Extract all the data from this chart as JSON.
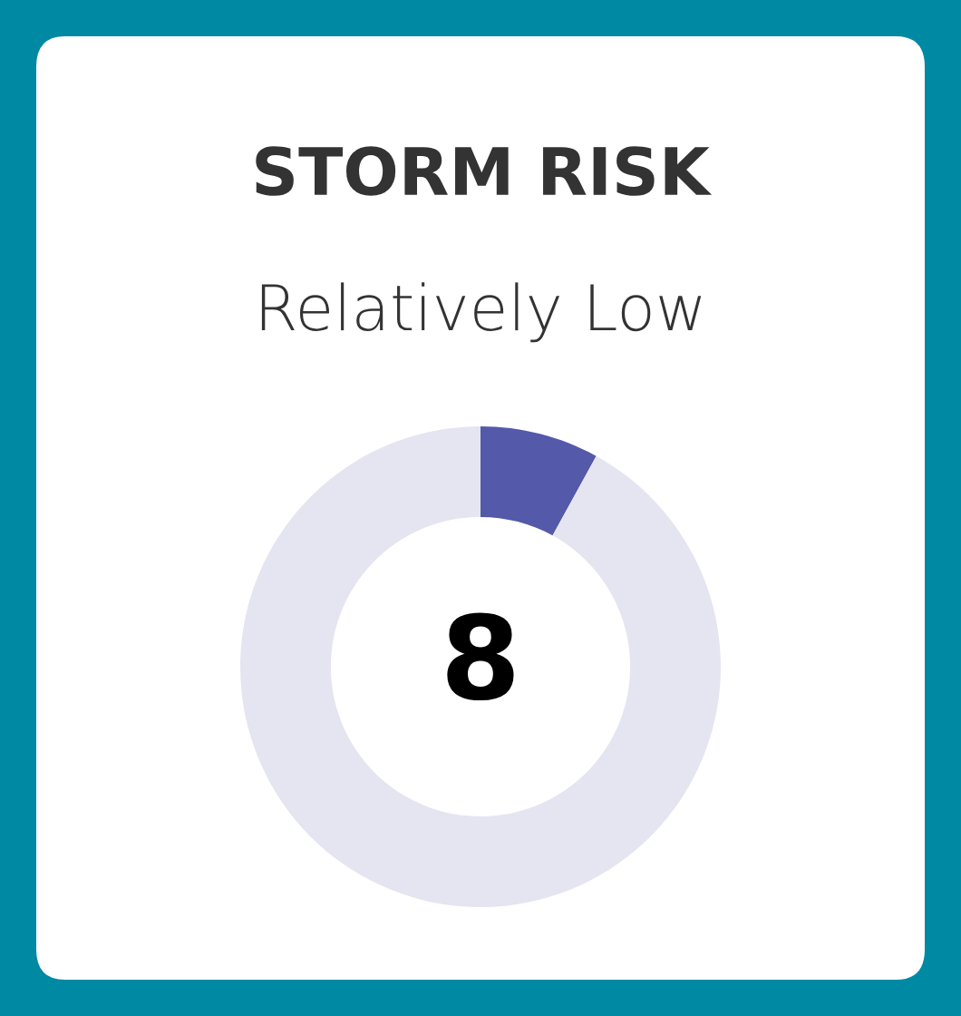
{
  "chart_data": {
    "type": "donut",
    "title": "STORM RISK",
    "subtitle": "Relatively Low",
    "categories": [
      null,
      null
    ],
    "values": [
      8,
      92
    ],
    "colors": [
      "#5459a9",
      "#e5e5f1"
    ],
    "value_labels": [
      "8",
      null
    ]
  }
}
